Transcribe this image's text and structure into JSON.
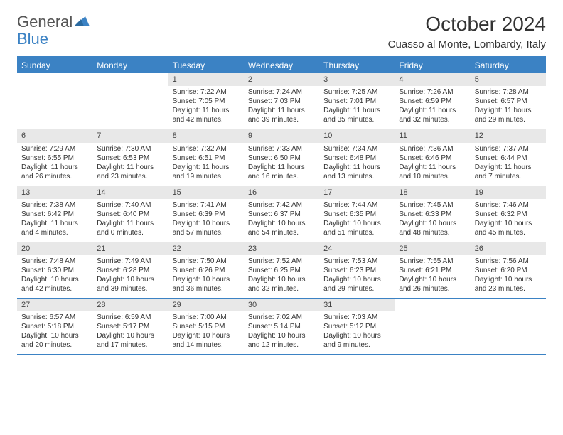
{
  "logo": {
    "word1": "General",
    "word2": "Blue"
  },
  "title": "October 2024",
  "location": "Cuasso al Monte, Lombardy, Italy",
  "colors": {
    "accent": "#3b82c4",
    "header_bg": "#3b82c4",
    "header_text": "#ffffff",
    "daynum_bg": "#e8e8e8",
    "daynum_text": "#444444",
    "body_text": "#333333",
    "divider": "#3b82c4",
    "page_bg": "#ffffff"
  },
  "typography": {
    "title_fontsize": 28,
    "location_fontsize": 15,
    "dayhead_fontsize": 12,
    "daynum_fontsize": 11,
    "cell_fontsize": 10,
    "logo_fontsize": 22
  },
  "day_headers": [
    "Sunday",
    "Monday",
    "Tuesday",
    "Wednesday",
    "Thursday",
    "Friday",
    "Saturday"
  ],
  "weeks": [
    [
      {
        "n": "",
        "sr": "",
        "ss": "",
        "dl1": "",
        "dl2": ""
      },
      {
        "n": "",
        "sr": "",
        "ss": "",
        "dl1": "",
        "dl2": ""
      },
      {
        "n": "1",
        "sr": "Sunrise: 7:22 AM",
        "ss": "Sunset: 7:05 PM",
        "dl1": "Daylight: 11 hours",
        "dl2": "and 42 minutes."
      },
      {
        "n": "2",
        "sr": "Sunrise: 7:24 AM",
        "ss": "Sunset: 7:03 PM",
        "dl1": "Daylight: 11 hours",
        "dl2": "and 39 minutes."
      },
      {
        "n": "3",
        "sr": "Sunrise: 7:25 AM",
        "ss": "Sunset: 7:01 PM",
        "dl1": "Daylight: 11 hours",
        "dl2": "and 35 minutes."
      },
      {
        "n": "4",
        "sr": "Sunrise: 7:26 AM",
        "ss": "Sunset: 6:59 PM",
        "dl1": "Daylight: 11 hours",
        "dl2": "and 32 minutes."
      },
      {
        "n": "5",
        "sr": "Sunrise: 7:28 AM",
        "ss": "Sunset: 6:57 PM",
        "dl1": "Daylight: 11 hours",
        "dl2": "and 29 minutes."
      }
    ],
    [
      {
        "n": "6",
        "sr": "Sunrise: 7:29 AM",
        "ss": "Sunset: 6:55 PM",
        "dl1": "Daylight: 11 hours",
        "dl2": "and 26 minutes."
      },
      {
        "n": "7",
        "sr": "Sunrise: 7:30 AM",
        "ss": "Sunset: 6:53 PM",
        "dl1": "Daylight: 11 hours",
        "dl2": "and 23 minutes."
      },
      {
        "n": "8",
        "sr": "Sunrise: 7:32 AM",
        "ss": "Sunset: 6:51 PM",
        "dl1": "Daylight: 11 hours",
        "dl2": "and 19 minutes."
      },
      {
        "n": "9",
        "sr": "Sunrise: 7:33 AM",
        "ss": "Sunset: 6:50 PM",
        "dl1": "Daylight: 11 hours",
        "dl2": "and 16 minutes."
      },
      {
        "n": "10",
        "sr": "Sunrise: 7:34 AM",
        "ss": "Sunset: 6:48 PM",
        "dl1": "Daylight: 11 hours",
        "dl2": "and 13 minutes."
      },
      {
        "n": "11",
        "sr": "Sunrise: 7:36 AM",
        "ss": "Sunset: 6:46 PM",
        "dl1": "Daylight: 11 hours",
        "dl2": "and 10 minutes."
      },
      {
        "n": "12",
        "sr": "Sunrise: 7:37 AM",
        "ss": "Sunset: 6:44 PM",
        "dl1": "Daylight: 11 hours",
        "dl2": "and 7 minutes."
      }
    ],
    [
      {
        "n": "13",
        "sr": "Sunrise: 7:38 AM",
        "ss": "Sunset: 6:42 PM",
        "dl1": "Daylight: 11 hours",
        "dl2": "and 4 minutes."
      },
      {
        "n": "14",
        "sr": "Sunrise: 7:40 AM",
        "ss": "Sunset: 6:40 PM",
        "dl1": "Daylight: 11 hours",
        "dl2": "and 0 minutes."
      },
      {
        "n": "15",
        "sr": "Sunrise: 7:41 AM",
        "ss": "Sunset: 6:39 PM",
        "dl1": "Daylight: 10 hours",
        "dl2": "and 57 minutes."
      },
      {
        "n": "16",
        "sr": "Sunrise: 7:42 AM",
        "ss": "Sunset: 6:37 PM",
        "dl1": "Daylight: 10 hours",
        "dl2": "and 54 minutes."
      },
      {
        "n": "17",
        "sr": "Sunrise: 7:44 AM",
        "ss": "Sunset: 6:35 PM",
        "dl1": "Daylight: 10 hours",
        "dl2": "and 51 minutes."
      },
      {
        "n": "18",
        "sr": "Sunrise: 7:45 AM",
        "ss": "Sunset: 6:33 PM",
        "dl1": "Daylight: 10 hours",
        "dl2": "and 48 minutes."
      },
      {
        "n": "19",
        "sr": "Sunrise: 7:46 AM",
        "ss": "Sunset: 6:32 PM",
        "dl1": "Daylight: 10 hours",
        "dl2": "and 45 minutes."
      }
    ],
    [
      {
        "n": "20",
        "sr": "Sunrise: 7:48 AM",
        "ss": "Sunset: 6:30 PM",
        "dl1": "Daylight: 10 hours",
        "dl2": "and 42 minutes."
      },
      {
        "n": "21",
        "sr": "Sunrise: 7:49 AM",
        "ss": "Sunset: 6:28 PM",
        "dl1": "Daylight: 10 hours",
        "dl2": "and 39 minutes."
      },
      {
        "n": "22",
        "sr": "Sunrise: 7:50 AM",
        "ss": "Sunset: 6:26 PM",
        "dl1": "Daylight: 10 hours",
        "dl2": "and 36 minutes."
      },
      {
        "n": "23",
        "sr": "Sunrise: 7:52 AM",
        "ss": "Sunset: 6:25 PM",
        "dl1": "Daylight: 10 hours",
        "dl2": "and 32 minutes."
      },
      {
        "n": "24",
        "sr": "Sunrise: 7:53 AM",
        "ss": "Sunset: 6:23 PM",
        "dl1": "Daylight: 10 hours",
        "dl2": "and 29 minutes."
      },
      {
        "n": "25",
        "sr": "Sunrise: 7:55 AM",
        "ss": "Sunset: 6:21 PM",
        "dl1": "Daylight: 10 hours",
        "dl2": "and 26 minutes."
      },
      {
        "n": "26",
        "sr": "Sunrise: 7:56 AM",
        "ss": "Sunset: 6:20 PM",
        "dl1": "Daylight: 10 hours",
        "dl2": "and 23 minutes."
      }
    ],
    [
      {
        "n": "27",
        "sr": "Sunrise: 6:57 AM",
        "ss": "Sunset: 5:18 PM",
        "dl1": "Daylight: 10 hours",
        "dl2": "and 20 minutes."
      },
      {
        "n": "28",
        "sr": "Sunrise: 6:59 AM",
        "ss": "Sunset: 5:17 PM",
        "dl1": "Daylight: 10 hours",
        "dl2": "and 17 minutes."
      },
      {
        "n": "29",
        "sr": "Sunrise: 7:00 AM",
        "ss": "Sunset: 5:15 PM",
        "dl1": "Daylight: 10 hours",
        "dl2": "and 14 minutes."
      },
      {
        "n": "30",
        "sr": "Sunrise: 7:02 AM",
        "ss": "Sunset: 5:14 PM",
        "dl1": "Daylight: 10 hours",
        "dl2": "and 12 minutes."
      },
      {
        "n": "31",
        "sr": "Sunrise: 7:03 AM",
        "ss": "Sunset: 5:12 PM",
        "dl1": "Daylight: 10 hours",
        "dl2": "and 9 minutes."
      },
      {
        "n": "",
        "sr": "",
        "ss": "",
        "dl1": "",
        "dl2": ""
      },
      {
        "n": "",
        "sr": "",
        "ss": "",
        "dl1": "",
        "dl2": ""
      }
    ]
  ]
}
